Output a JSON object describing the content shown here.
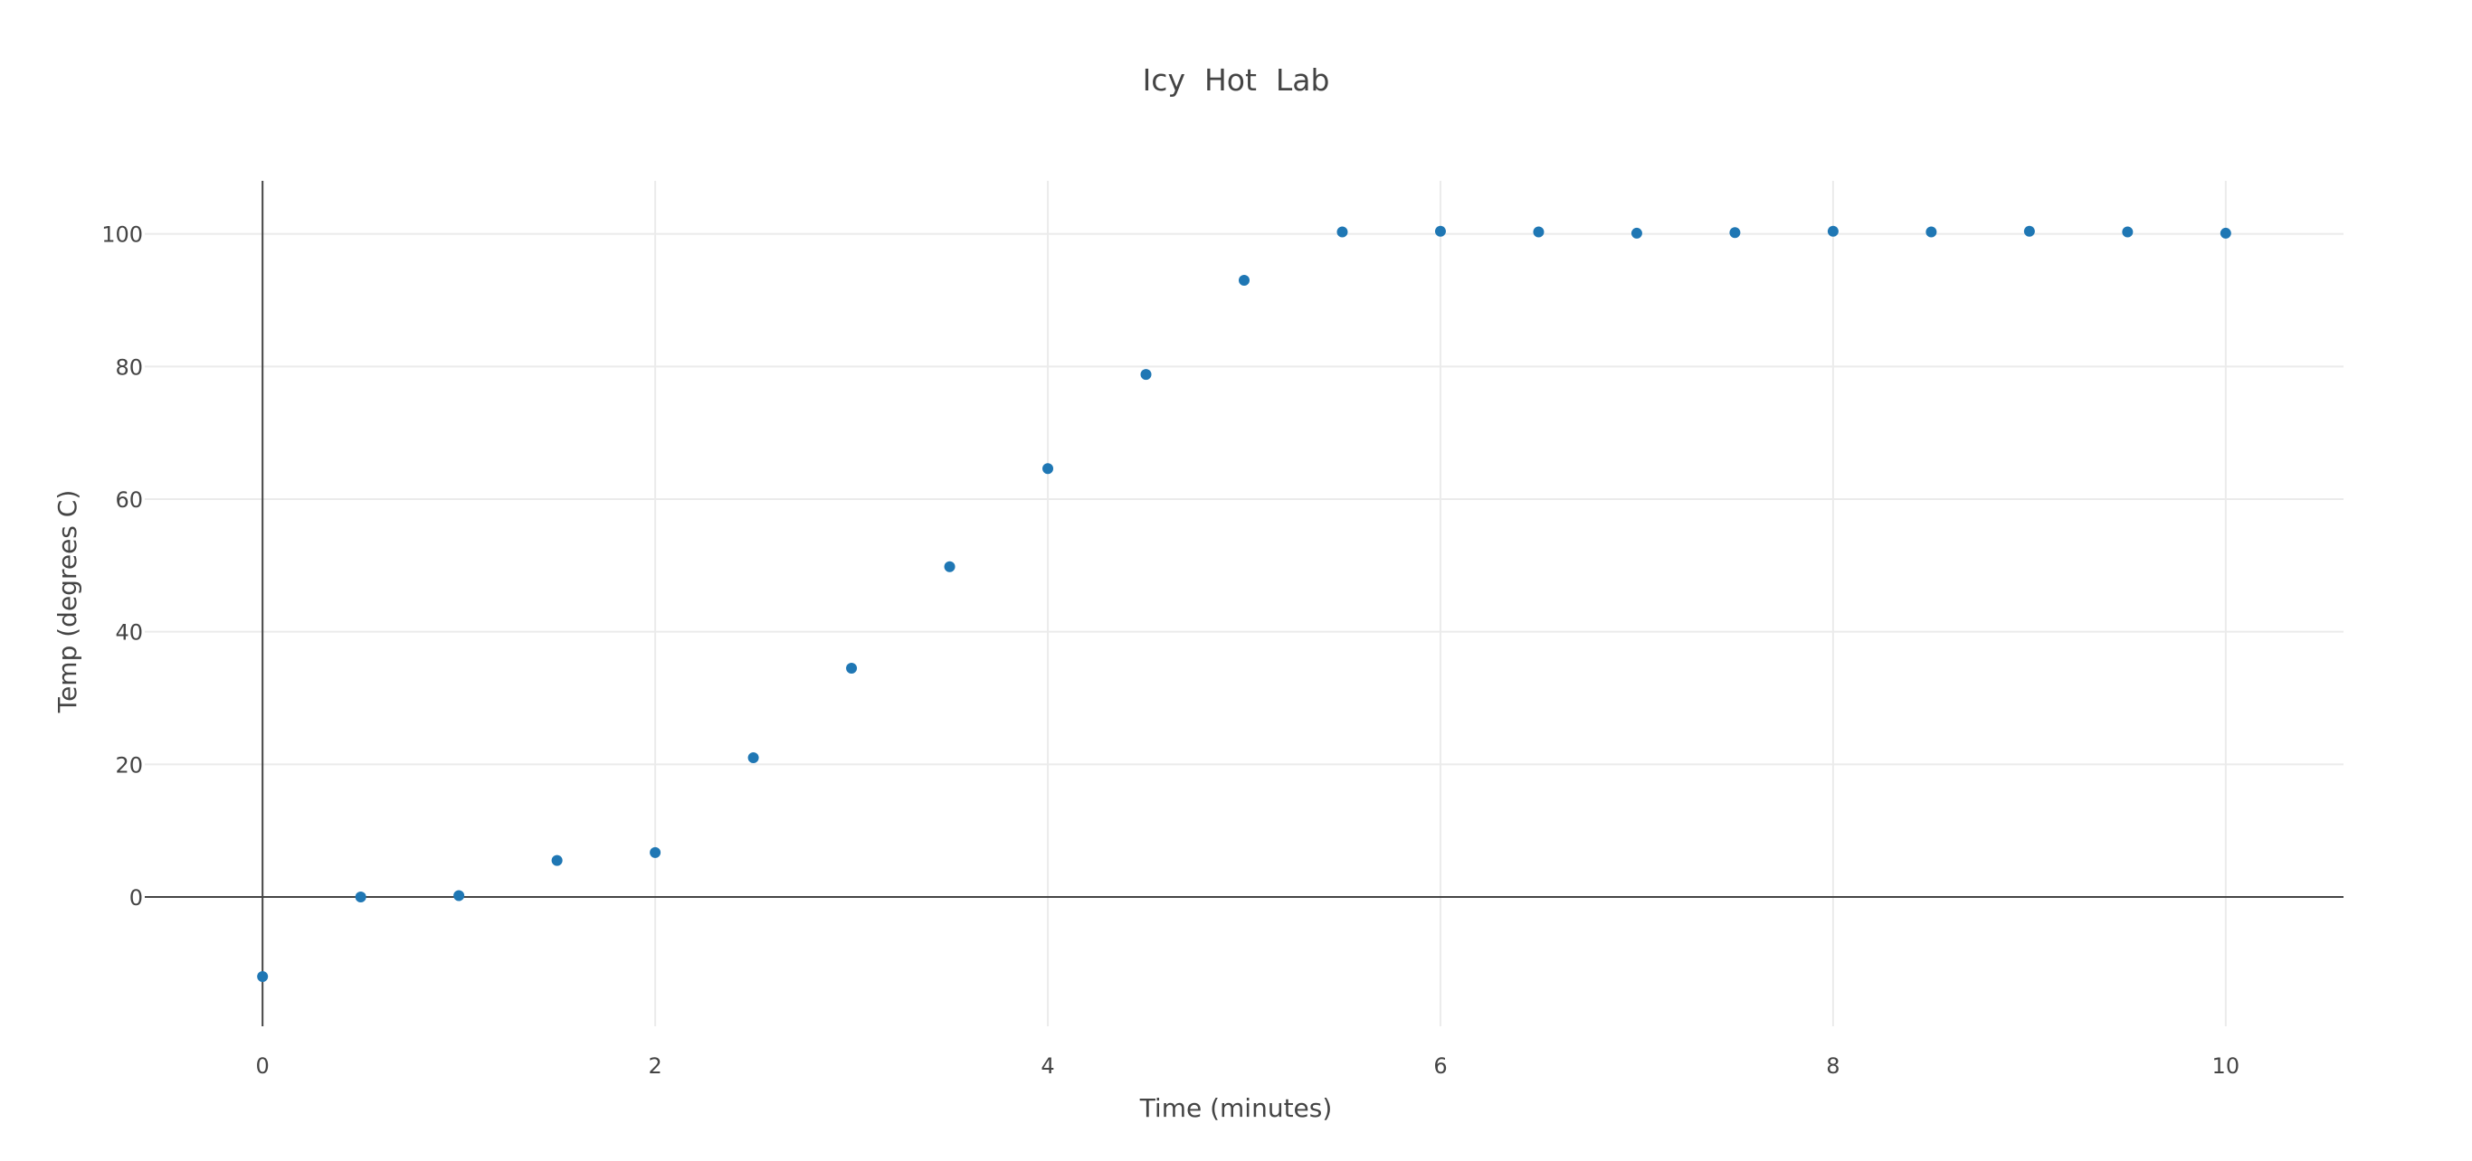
{
  "chart_data": {
    "type": "scatter",
    "title": "Icy  Hot  Lab",
    "xlabel": "Time (minutes)",
    "ylabel": "Temp (degrees C)",
    "xlim": [
      -0.6,
      10.6
    ],
    "ylim": [
      -19.5,
      108
    ],
    "x_ticks": [
      0,
      2,
      4,
      6,
      8,
      10
    ],
    "y_ticks": [
      0,
      20,
      40,
      60,
      80,
      100
    ],
    "grid": true,
    "marker_color": "#1f77b4",
    "series": [
      {
        "x": [
          0,
          0.5,
          1,
          1.5,
          2,
          2.5,
          3,
          3.5,
          4,
          4.5,
          5,
          5.5,
          6,
          6.5,
          7,
          7.5,
          8,
          8.5,
          9,
          9.5,
          10
        ],
        "y": [
          -12,
          0,
          0.2,
          5.5,
          6.7,
          21,
          34.5,
          49.8,
          64.6,
          78.8,
          93,
          100.3,
          100.4,
          100.3,
          100.1,
          100.2,
          100.4,
          100.3,
          100.4,
          100.3,
          100.1
        ]
      }
    ]
  }
}
